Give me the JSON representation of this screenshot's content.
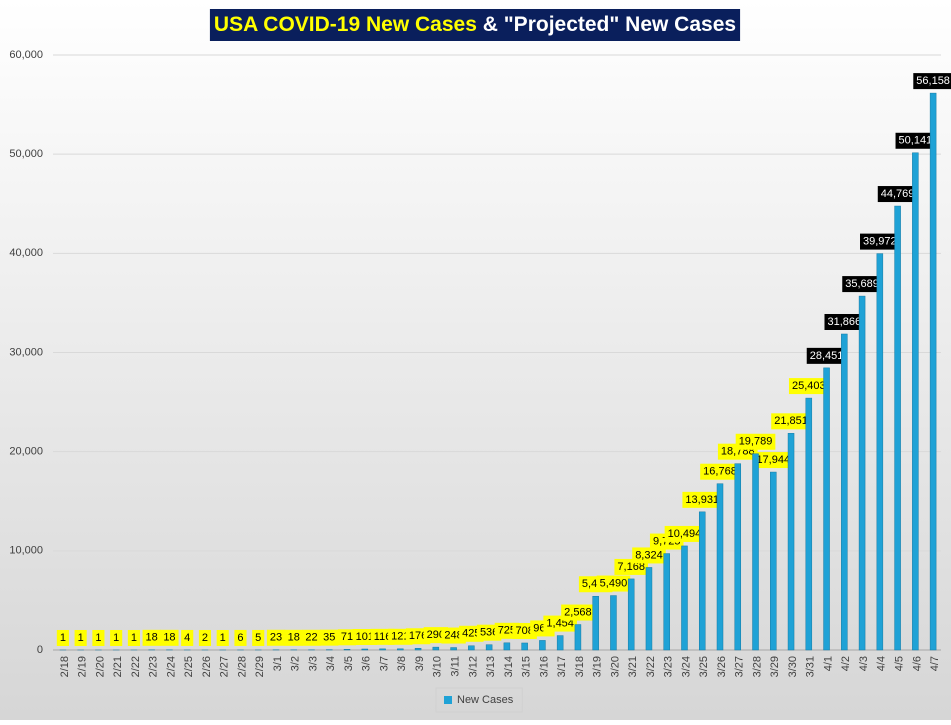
{
  "chart_data": {
    "type": "bar",
    "title": [
      "USA COVID-19 New Cases",
      " & \"Projected\" New Cases"
    ],
    "title_colors": [
      "#ffff00",
      "#ffffff"
    ],
    "title_background": "#0a1f5c",
    "categories": [
      "2/18",
      "2/19",
      "2/20",
      "2/21",
      "2/22",
      "2/23",
      "2/24",
      "2/25",
      "2/26",
      "2/27",
      "2/28",
      "2/29",
      "3/1",
      "3/2",
      "3/3",
      "3/4",
      "3/5",
      "3/6",
      "3/7",
      "3/8",
      "3/9",
      "3/10",
      "3/11",
      "3/12",
      "3/13",
      "3/14",
      "3/15",
      "3/16",
      "3/17",
      "3/18",
      "3/19",
      "3/20",
      "3/21",
      "3/22",
      "3/23",
      "3/24",
      "3/25",
      "3/26",
      "3/27",
      "3/28",
      "3/29",
      "3/30",
      "3/31",
      "4/1",
      "4/2",
      "4/3",
      "4/4",
      "4/5",
      "4/6",
      "4/7"
    ],
    "series": [
      {
        "name": "New Cases",
        "color": "#1fa2d6",
        "values": [
          1,
          1,
          1,
          1,
          1,
          18,
          18,
          4,
          2,
          1,
          6,
          5,
          23,
          18,
          22,
          35,
          71,
          101,
          116,
          121,
          176,
          290,
          248,
          425,
          536,
          725,
          708,
          966,
          1454,
          2568,
          5421,
          5490,
          7168,
          8324,
          9725,
          10494,
          13931,
          16768,
          18788,
          19789,
          17944,
          21851,
          25403,
          28451,
          31866,
          35689,
          39972,
          44769,
          50141,
          56158
        ],
        "value_labels": [
          "1",
          "1",
          "1",
          "1",
          "1",
          "18",
          "18",
          "4",
          "2",
          "1",
          "6",
          "5",
          "23",
          "18",
          "22",
          "35",
          "71",
          "101",
          "116",
          "121",
          "176",
          "290",
          "248",
          "425",
          "536",
          "725",
          "708",
          "966",
          "1,454",
          "2,568",
          "5,421",
          "5,490",
          "7,168",
          "8,324",
          "9,725",
          "10,494",
          "13,931",
          "16,768",
          "18,788",
          "19,789",
          "17,944",
          "21,851",
          "25,403",
          "28,451",
          "31,866",
          "35,689",
          "39,972",
          "44,769",
          "50,141",
          "56,158"
        ],
        "value_label_fills": [
          "#ffff00",
          "#ffff00",
          "#ffff00",
          "#ffff00",
          "#ffff00",
          "#ffff00",
          "#ffff00",
          "#ffff00",
          "#ffff00",
          "#ffff00",
          "#ffff00",
          "#ffff00",
          "#ffff00",
          "#ffff00",
          "#ffff00",
          "#ffff00",
          "#ffff00",
          "#ffff00",
          "#ffff00",
          "#ffff00",
          "#ffff00",
          "#ffff00",
          "#ffff00",
          "#ffff00",
          "#ffff00",
          "#ffff00",
          "#ffff00",
          "#ffff00",
          "#ffff00",
          "#ffff00",
          "#ffff00",
          "#ffff00",
          "#ffff00",
          "#ffff00",
          "#ffff00",
          "#ffff00",
          "#ffff00",
          "#ffff00",
          "#ffff00",
          "#ffff00",
          "#ffff00",
          "#ffff00",
          "#ffff00",
          "#000000",
          "#000000",
          "#000000",
          "#000000",
          "#000000",
          "#000000",
          "#000000"
        ]
      }
    ],
    "ylim": [
      0,
      60000
    ],
    "yticks": [
      0,
      {
        "value": 10000,
        "label": "10,000"
      },
      {
        "value": 20000,
        "label": "20,000"
      },
      {
        "value": 30000,
        "label": "30,000"
      },
      {
        "value": 40000,
        "label": "40,000"
      },
      {
        "value": 50000,
        "label": "50,000"
      },
      {
        "value": 60000,
        "label": "60,000"
      }
    ],
    "grid": true,
    "legend": "bottom"
  }
}
